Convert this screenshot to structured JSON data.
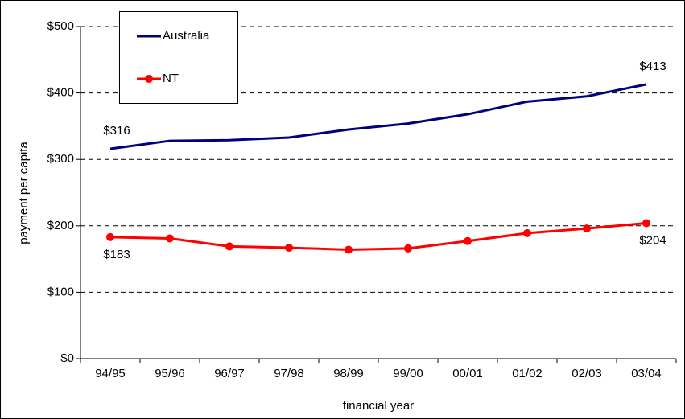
{
  "chart_data": {
    "type": "line",
    "x_label": "financial year",
    "y_label": "payment per capita",
    "categories": [
      "94/95",
      "95/96",
      "96/97",
      "97/98",
      "98/99",
      "99/00",
      "00/01",
      "01/02",
      "02/03",
      "03/04"
    ],
    "series": [
      {
        "name": "Australia",
        "color": "#000080",
        "markers": false,
        "values": [
          316,
          328,
          329,
          333,
          345,
          354,
          368,
          387,
          395,
          413
        ],
        "value_labels": [
          "$316",
          null,
          null,
          null,
          null,
          null,
          null,
          null,
          null,
          "$413"
        ]
      },
      {
        "name": "NT",
        "color": "#ff0000",
        "markers": true,
        "values": [
          183,
          181,
          169,
          167,
          164,
          166,
          177,
          189,
          196,
          204
        ],
        "value_labels": [
          "$183",
          null,
          null,
          null,
          null,
          null,
          null,
          null,
          null,
          "$204"
        ]
      }
    ],
    "ylim": [
      0,
      500
    ],
    "yticks": [
      {
        "value": 0,
        "label": "$0"
      },
      {
        "value": 100,
        "label": "$100"
      },
      {
        "value": 200,
        "label": "$200"
      },
      {
        "value": 300,
        "label": "$300"
      },
      {
        "value": 400,
        "label": "$400"
      },
      {
        "value": 500,
        "label": "$500"
      }
    ],
    "grid": true,
    "legend": "top-left"
  }
}
